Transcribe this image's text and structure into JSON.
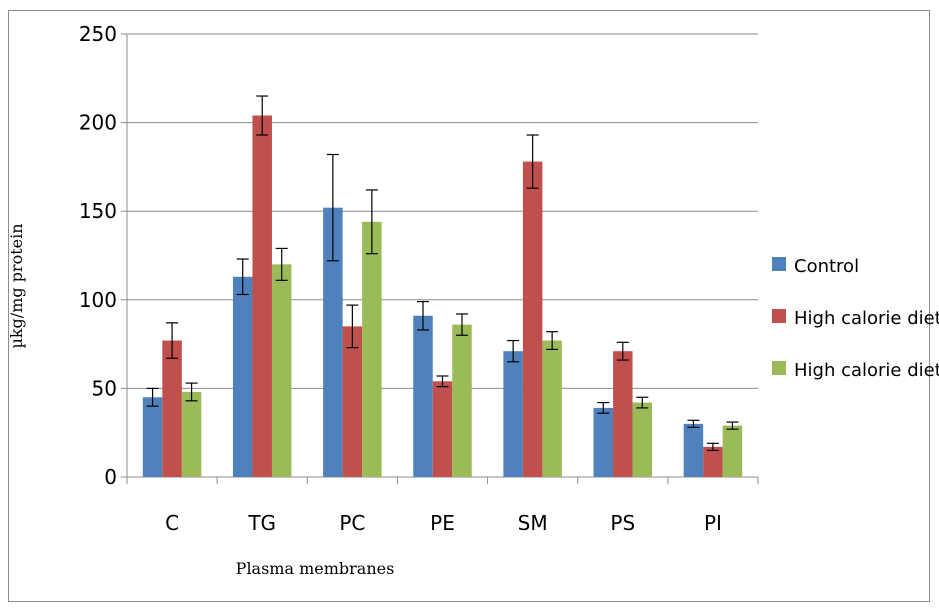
{
  "chart_data": {
    "type": "bar",
    "xlabel": "Plasma membranes",
    "ylabel": "µkg/mg protein",
    "ylim": [
      0,
      250
    ],
    "yticks": [
      0,
      50,
      100,
      150,
      200,
      250
    ],
    "grid": true,
    "legend_position": "right",
    "categories": [
      "C",
      "TG",
      "PC",
      "PE",
      "SM",
      "PS",
      "PI"
    ],
    "series": [
      {
        "name": "Control",
        "color": "#4f81bd",
        "values": [
          45,
          113,
          152,
          91,
          71,
          39,
          30
        ],
        "errors": [
          5,
          10,
          30,
          8,
          6,
          3,
          2
        ]
      },
      {
        "name": "High calorie diet",
        "color": "#c0504d",
        "values": [
          77,
          204,
          85,
          54,
          178,
          71,
          17
        ],
        "errors": [
          10,
          11,
          12,
          3,
          15,
          5,
          2
        ]
      },
      {
        "name": "High calorie diet+FNG",
        "color": "#9bbb59",
        "values": [
          48,
          120,
          144,
          86,
          77,
          42,
          29
        ],
        "errors": [
          5,
          9,
          18,
          6,
          5,
          3,
          2
        ]
      }
    ]
  }
}
